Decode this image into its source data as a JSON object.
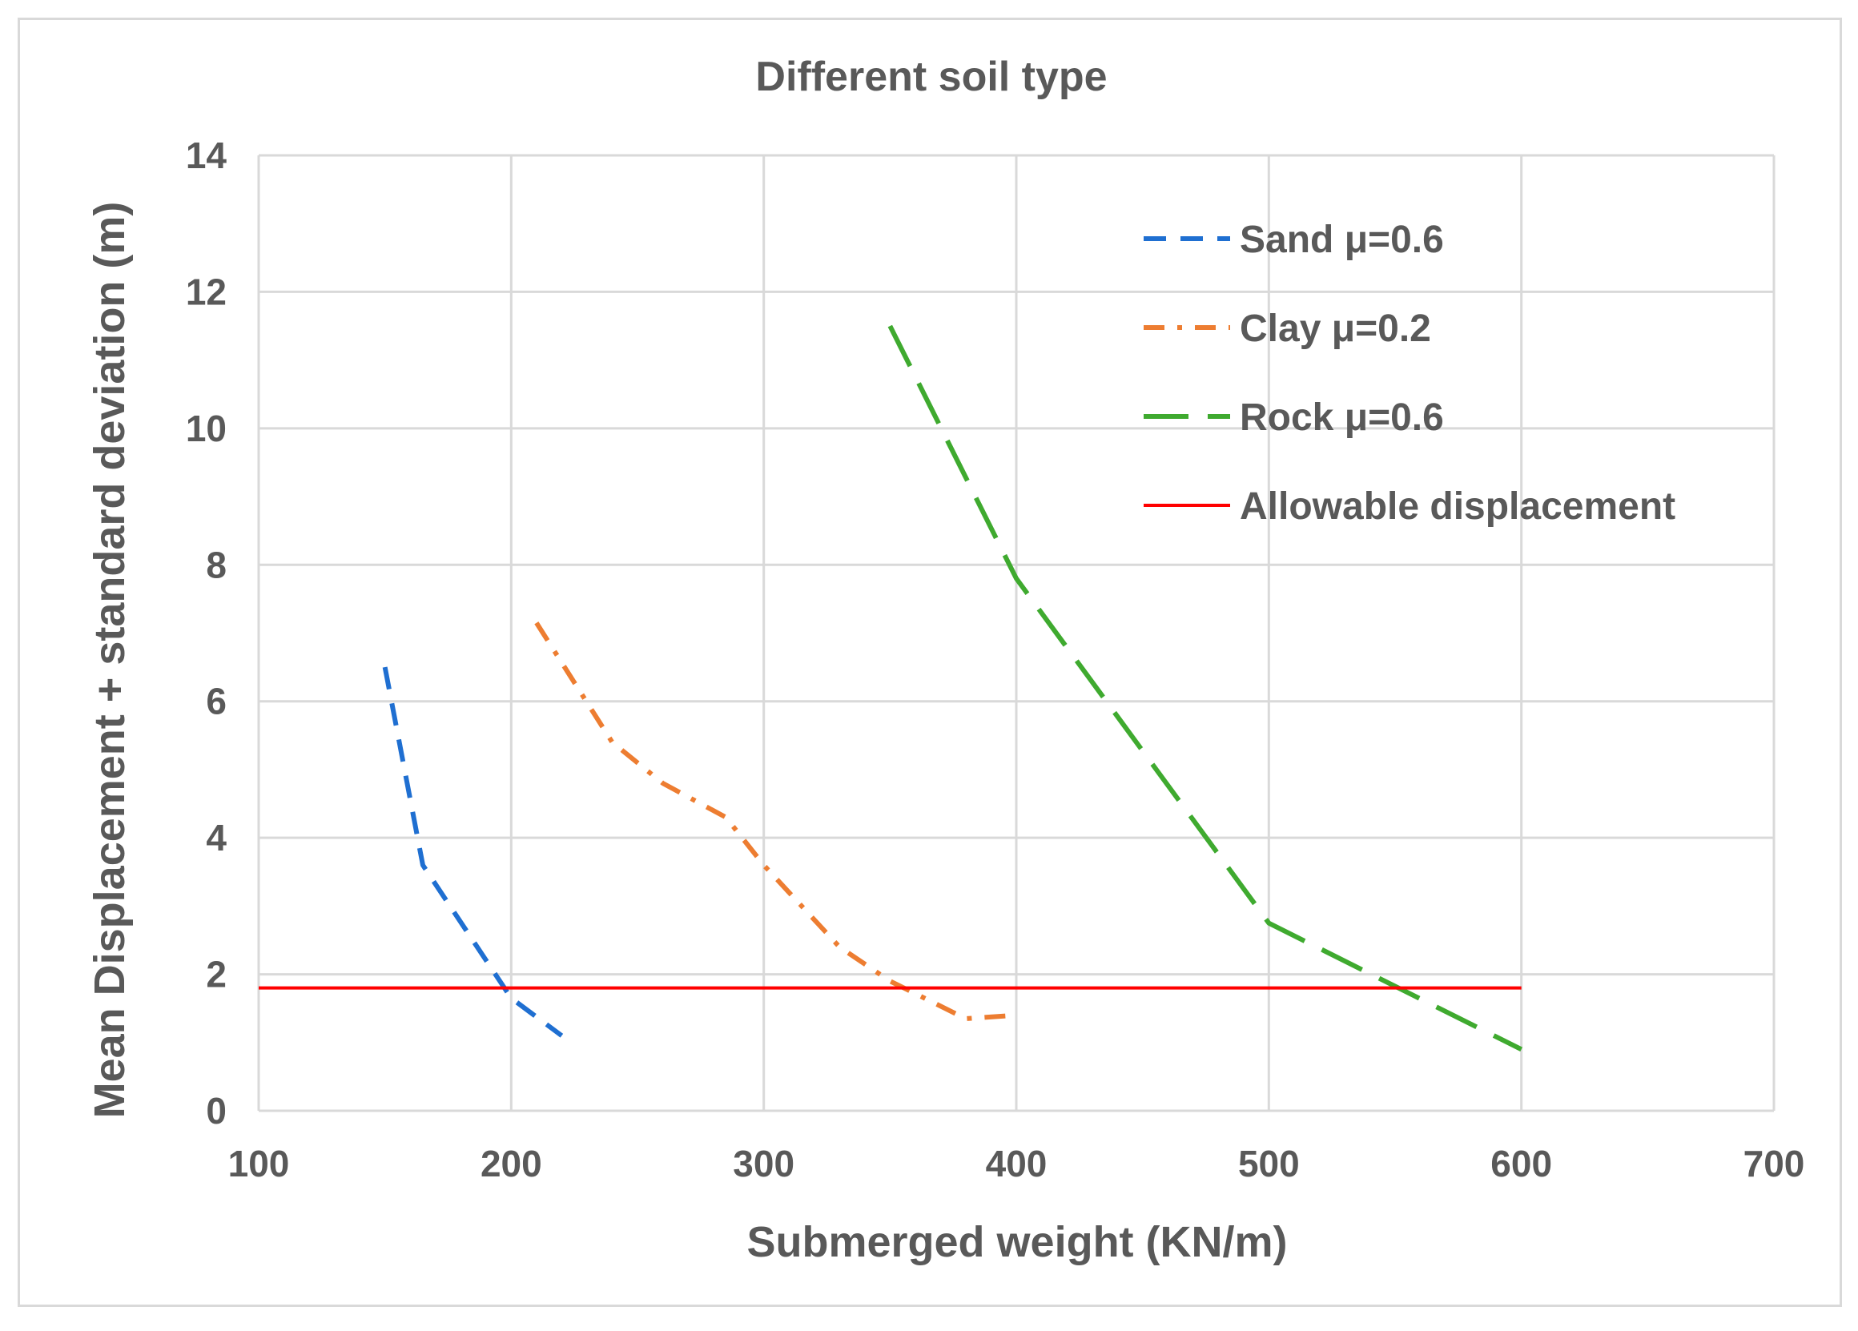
{
  "chart_data": {
    "type": "line",
    "title": "Different soil type",
    "xlabel": "Submerged weight (KN/m)",
    "ylabel": "Mean Displacement + standard deviation (m)",
    "xlim": [
      100,
      700
    ],
    "ylim": [
      0,
      14
    ],
    "xticks": [
      100,
      200,
      300,
      400,
      500,
      600,
      700
    ],
    "yticks": [
      0,
      2,
      4,
      6,
      8,
      10,
      12,
      14
    ],
    "xtick_labels": [
      "100",
      "200",
      "300",
      "400",
      "500",
      "600",
      "700"
    ],
    "ytick_labels": [
      "0",
      "2",
      "4",
      "6",
      "8",
      "10",
      "12",
      "14"
    ],
    "grid": true,
    "legend_position": "top-right",
    "series": [
      {
        "name": "Sand μ=0.6",
        "color": "#1f6fd1",
        "dash": "dashed",
        "x": [
          150,
          165,
          200,
          220
        ],
        "y": [
          6.5,
          3.6,
          1.65,
          1.1
        ]
      },
      {
        "name": "Clay μ=0.2",
        "color": "#ed7d31",
        "dash": "dashdot",
        "x": [
          210,
          240,
          260,
          285,
          300,
          330,
          350,
          380,
          400
        ],
        "y": [
          7.15,
          5.4,
          4.8,
          4.3,
          3.6,
          2.4,
          1.9,
          1.35,
          1.4
        ]
      },
      {
        "name": "Rock μ=0.6",
        "color": "#3faa2f",
        "dash": "longdash",
        "x": [
          350,
          400,
          500,
          600
        ],
        "y": [
          11.5,
          7.8,
          2.75,
          0.9
        ]
      },
      {
        "name": "Allowable displacement",
        "color": "#ff0000",
        "dash": "solid",
        "x": [
          100,
          600
        ],
        "y": [
          1.8,
          1.8
        ]
      }
    ]
  }
}
